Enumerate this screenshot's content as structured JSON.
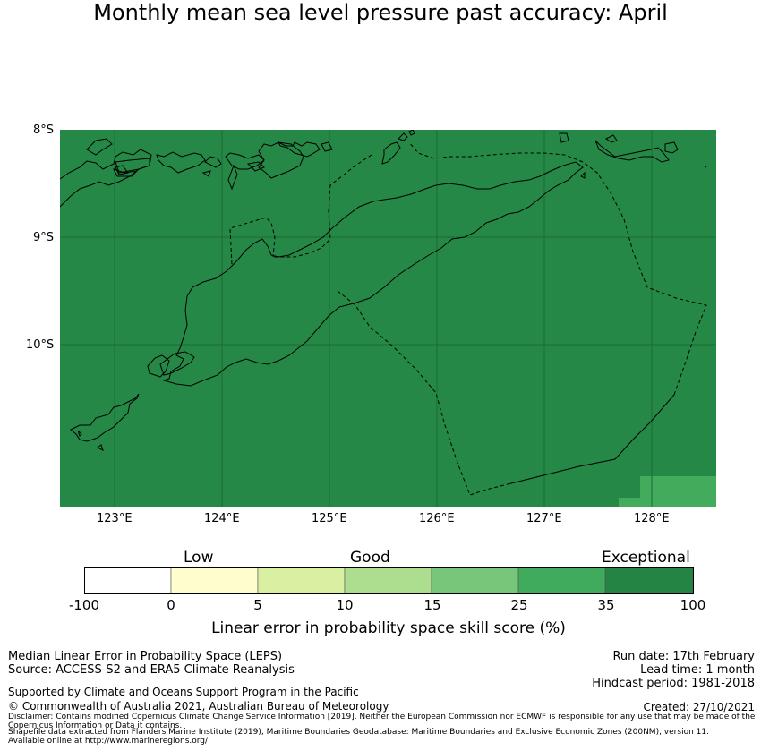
{
  "title": "Monthly mean sea level pressure past accuracy: April",
  "map": {
    "lat_labels": [
      "8°S",
      "9°S",
      "10°S"
    ],
    "lon_labels": [
      "123°E",
      "124°E",
      "125°E",
      "126°E",
      "127°E",
      "128°E"
    ],
    "colors": {
      "sea": "#268846",
      "grid": "#1b6b36",
      "lower_patch": "#42ab5c",
      "coast": "#000000"
    }
  },
  "legend": {
    "categories": [
      "Low",
      "Good",
      "Exceptional"
    ],
    "ticks": [
      "-100",
      "0",
      "5",
      "10",
      "15",
      "25",
      "35",
      "100"
    ],
    "bins": [
      {
        "from": -100,
        "to": 0,
        "color": "#ffffff"
      },
      {
        "from": 0,
        "to": 5,
        "color": "#fefdcd"
      },
      {
        "from": 5,
        "to": 10,
        "color": "#d9f0a3"
      },
      {
        "from": 10,
        "to": 15,
        "color": "#addd8e"
      },
      {
        "from": 15,
        "to": 25,
        "color": "#78c679"
      },
      {
        "from": 25,
        "to": 35,
        "color": "#41ab5d"
      },
      {
        "from": 35,
        "to": 100,
        "color": "#238443"
      }
    ],
    "label": "Linear error in probability space skill score (%)"
  },
  "footer": {
    "metric": "Median Linear Error in Probability Space (LEPS)",
    "source": "Source: ACCESS-S2 and ERA5 Climate Reanalysis",
    "support": "Supported by Climate and Oceans Support Program in the Pacific",
    "copyright": "© Commonwealth of Australia 2021, Australian Bureau of Meteorology",
    "run_date": "Run date: 17th February",
    "lead_time": "Lead time: 1 month",
    "hindcast": "Hindcast period: 1981-2018",
    "created": "Created: 27/10/2021",
    "disclaimer": "Disclaimer: Contains modified Copernicus Climate Change Service Information [2019]. Neither the European Commission nor ECMWF is responsible for any use that may be made of the Copernicus Information or Data it contains.",
    "shapefile": "Shapefile data extracted from Flanders Marine Institute (2019), Maritime Boundaries Geodatabase: Maritime Boundaries and Exclusive Economic Zones (200NM), version 11. Available online at http://www.marineregions.org/."
  }
}
